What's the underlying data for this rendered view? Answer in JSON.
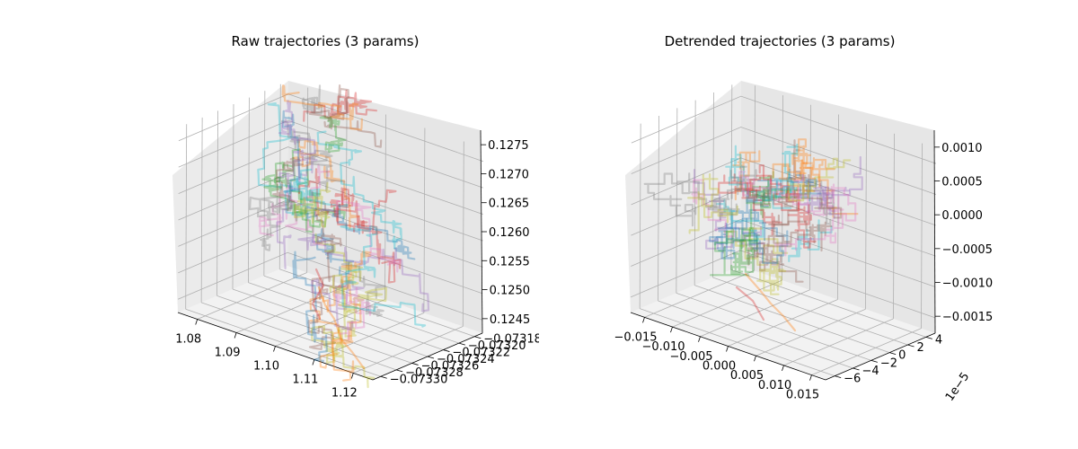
{
  "chart_data": [
    {
      "type": "line3d",
      "title": "Raw trajectories (3 params)",
      "x_ticks": [
        "1.08",
        "1.09",
        "1.10",
        "1.11",
        "1.12"
      ],
      "y_ticks": [
        "−0.07318",
        "−0.07320",
        "−0.07322",
        "−0.07324",
        "−0.07326",
        "−0.07328",
        "−0.07330"
      ],
      "z_ticks": [
        "0.1275",
        "0.1270",
        "0.1265",
        "0.1260",
        "0.1255",
        "0.1250",
        "0.1245"
      ],
      "x_offset_label": "",
      "y_offset_label": "",
      "z_offset_label": "",
      "xlim": [
        1.075,
        1.122
      ],
      "ylim": [
        -0.0733,
        -0.07318
      ],
      "zlim": [
        0.12425,
        0.1278
      ],
      "cloud_center": [
        1.1,
        -0.07324,
        0.1262
      ],
      "cloud_spread": [
        0.006,
        2.5e-05,
        0.00045
      ],
      "grid": true,
      "series_count": 40
    },
    {
      "type": "line3d",
      "title": "Detrended trajectories (3 params)",
      "x_ticks": [
        "−0.015",
        "−0.010",
        "−0.005",
        "0.000",
        "0.005",
        "0.010",
        "0.015"
      ],
      "y_ticks": [
        "4",
        "2",
        "0",
        "−2",
        "−4",
        "−6"
      ],
      "z_ticks": [
        "0.0010",
        "0.0005",
        "0.0000",
        "−0.0005",
        "−0.0010",
        "−0.0015"
      ],
      "x_offset_label": "",
      "y_offset_label": "1e−5",
      "z_offset_label": "",
      "xlim": [
        -0.016,
        0.016
      ],
      "ylim": [
        -6,
        5
      ],
      "zlim": [
        -0.0017,
        0.0013
      ],
      "cloud_center": [
        0.0,
        0.0,
        0.0
      ],
      "cloud_spread": [
        0.004,
        1.5,
        0.0004
      ],
      "grid": true,
      "series_count": 40
    }
  ],
  "colors": [
    "#1f77b4",
    "#ff7f0e",
    "#2ca02c",
    "#d62728",
    "#9467bd",
    "#8c564b",
    "#e377c2",
    "#7f7f7f",
    "#bcbd22",
    "#17becf"
  ]
}
